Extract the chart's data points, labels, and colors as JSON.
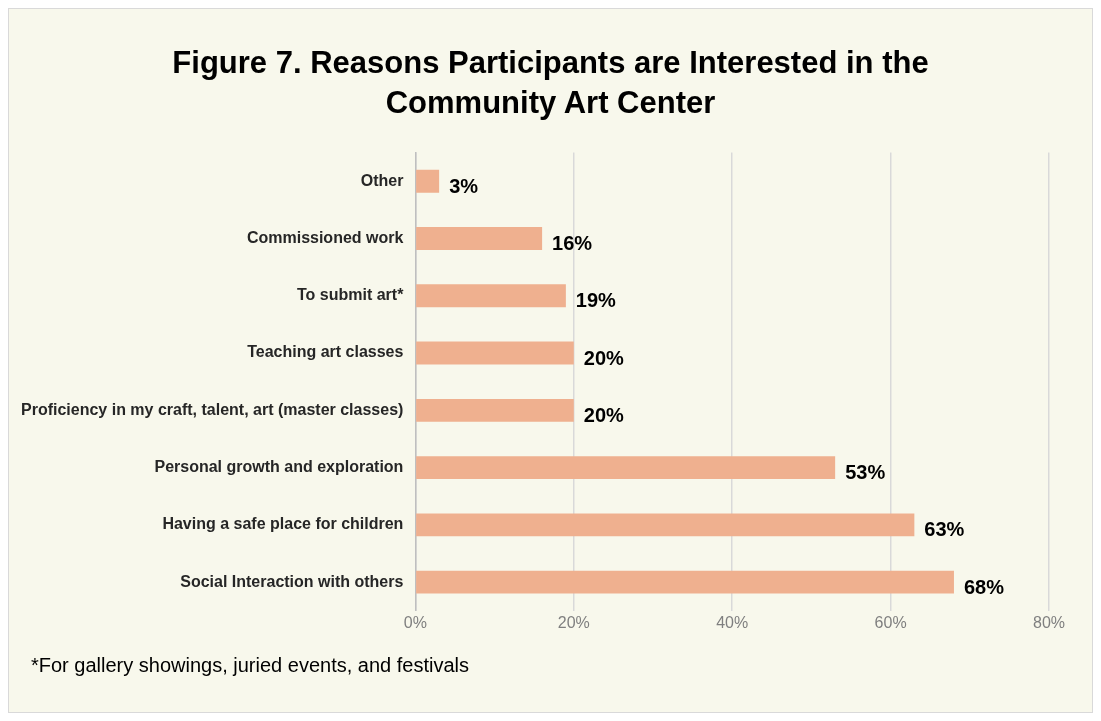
{
  "chart_data": {
    "type": "bar",
    "orientation": "horizontal",
    "title": "Figure 7. Reasons Participants are Interested in the Community Art Center",
    "categories": [
      "Other",
      "Commissioned work",
      "To submit art*",
      "Teaching art classes",
      "Proficiency in my craft, talent, art (master classes)",
      "Personal growth and exploration",
      "Having a safe place for children",
      "Social Interaction with others"
    ],
    "values": [
      3,
      16,
      19,
      20,
      20,
      53,
      63,
      68
    ],
    "value_labels": [
      "3%",
      "16%",
      "19%",
      "20%",
      "20%",
      "53%",
      "63%",
      "68%"
    ],
    "color": "#efb08f",
    "xlim": [
      0,
      80
    ],
    "xticks": [
      {
        "value": 0,
        "label": "0%"
      },
      {
        "value": 20,
        "label": "20%"
      },
      {
        "value": 40,
        "label": "40%"
      },
      {
        "value": 60,
        "label": "60%"
      },
      {
        "value": 80,
        "label": "80%"
      }
    ],
    "grid": "x",
    "legend": false,
    "annotations": [
      "*For gallery showings, juried events, and festivals"
    ]
  }
}
